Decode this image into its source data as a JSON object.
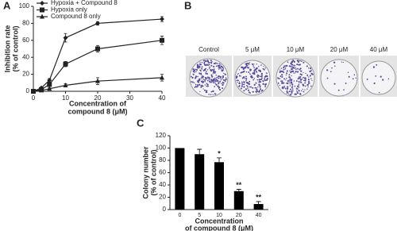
{
  "chart_data": [
    {
      "type": "line",
      "panel_label": "A",
      "x_label": [
        "Concentration of",
        "compound 8 (μM)"
      ],
      "y_label": [
        "Inhibition rate",
        "(% of control)"
      ],
      "x": [
        0,
        2.5,
        5,
        10,
        20,
        40
      ],
      "series": [
        {
          "name": "Hypoxia + Compound 8",
          "color": "#222222",
          "marker": "diamond",
          "values": [
            0,
            4,
            13,
            63,
            80,
            85
          ],
          "errors": [
            0,
            1,
            2,
            5,
            2,
            3
          ]
        },
        {
          "name": "Hypoxia only",
          "color": "#222222",
          "marker": "square",
          "values": [
            0,
            2,
            8,
            32,
            50,
            60
          ],
          "errors": [
            0,
            1,
            1,
            3,
            4,
            5
          ]
        },
        {
          "name": "Compound 8 only",
          "color": "#222222",
          "marker": "triangle",
          "values": [
            0,
            1,
            3,
            7,
            12,
            16
          ],
          "errors": [
            0,
            1,
            1,
            2,
            4,
            4
          ]
        }
      ],
      "xlim": [
        0,
        40
      ],
      "xticks": [
        0,
        10,
        20,
        30,
        40
      ],
      "ylim": [
        0,
        100
      ],
      "yticks": [
        0,
        20,
        40,
        60,
        80,
        100
      ],
      "legend": "upper left"
    },
    {
      "type": "bar",
      "panel_label": "C",
      "x_label": [
        "Concentration",
        "of compound 8 (μM)"
      ],
      "y_label": [
        "Colony number",
        "(% of control)"
      ],
      "categories": [
        "0",
        "5",
        "10",
        "20",
        "40"
      ],
      "values": [
        100,
        90,
        77,
        30,
        9
      ],
      "errors": [
        0,
        8,
        7,
        3,
        4
      ],
      "significance": [
        null,
        null,
        "*",
        "**",
        "**"
      ],
      "color": "#000000",
      "ylim": [
        0,
        120
      ],
      "yticks": [
        0,
        20,
        40,
        60,
        80,
        100,
        120
      ]
    }
  ],
  "panel_b": {
    "panel_label": "B",
    "dishes": [
      "Control",
      "5 μM",
      "10 μM",
      "20 μM",
      "40 μM"
    ]
  }
}
